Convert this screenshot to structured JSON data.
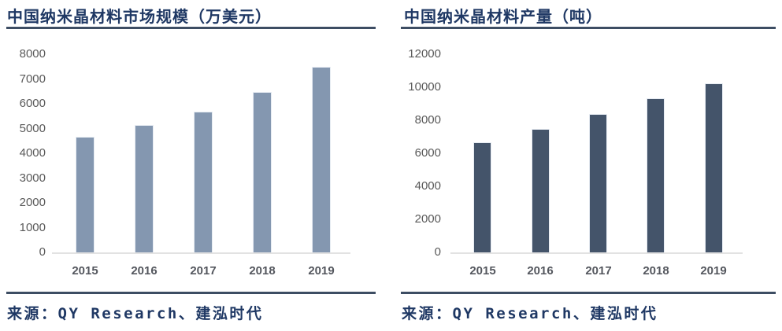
{
  "colors": {
    "title_text": "#1f3864",
    "rule": "#3d4d63",
    "axis_label": "#595959",
    "x_label": "#54575e",
    "baseline": "#e2e2e2",
    "left_bar": "#8497b0",
    "right_bar": "#44546a",
    "background": "#ffffff"
  },
  "chart_data": [
    {
      "type": "bar",
      "title": "中国纳米晶材料市场规模（万美元）",
      "source": "来源：QY Research、建泓时代",
      "categories": [
        "2015",
        "2016",
        "2017",
        "2018",
        "2019"
      ],
      "values": [
        4660,
        5140,
        5670,
        6470,
        7500
      ],
      "xlabel": "",
      "ylabel": "",
      "ylim": [
        0,
        8000
      ],
      "ytick_step": 1000,
      "yticks": [
        0,
        1000,
        2000,
        3000,
        4000,
        5000,
        6000,
        7000,
        8000
      ],
      "bar_color": "#8497b0",
      "grid": false,
      "legend": false
    },
    {
      "type": "bar",
      "title": "中国纳米晶材料产量（吨）",
      "source": "来源：QY Research、建泓时代",
      "categories": [
        "2015",
        "2016",
        "2017",
        "2018",
        "2019"
      ],
      "values": [
        6660,
        7490,
        8390,
        9310,
        10260
      ],
      "xlabel": "",
      "ylabel": "",
      "ylim": [
        0,
        12000
      ],
      "ytick_step": 2000,
      "yticks": [
        0,
        2000,
        4000,
        6000,
        8000,
        10000,
        12000
      ],
      "bar_color": "#44546a",
      "grid": false,
      "legend": false
    }
  ]
}
